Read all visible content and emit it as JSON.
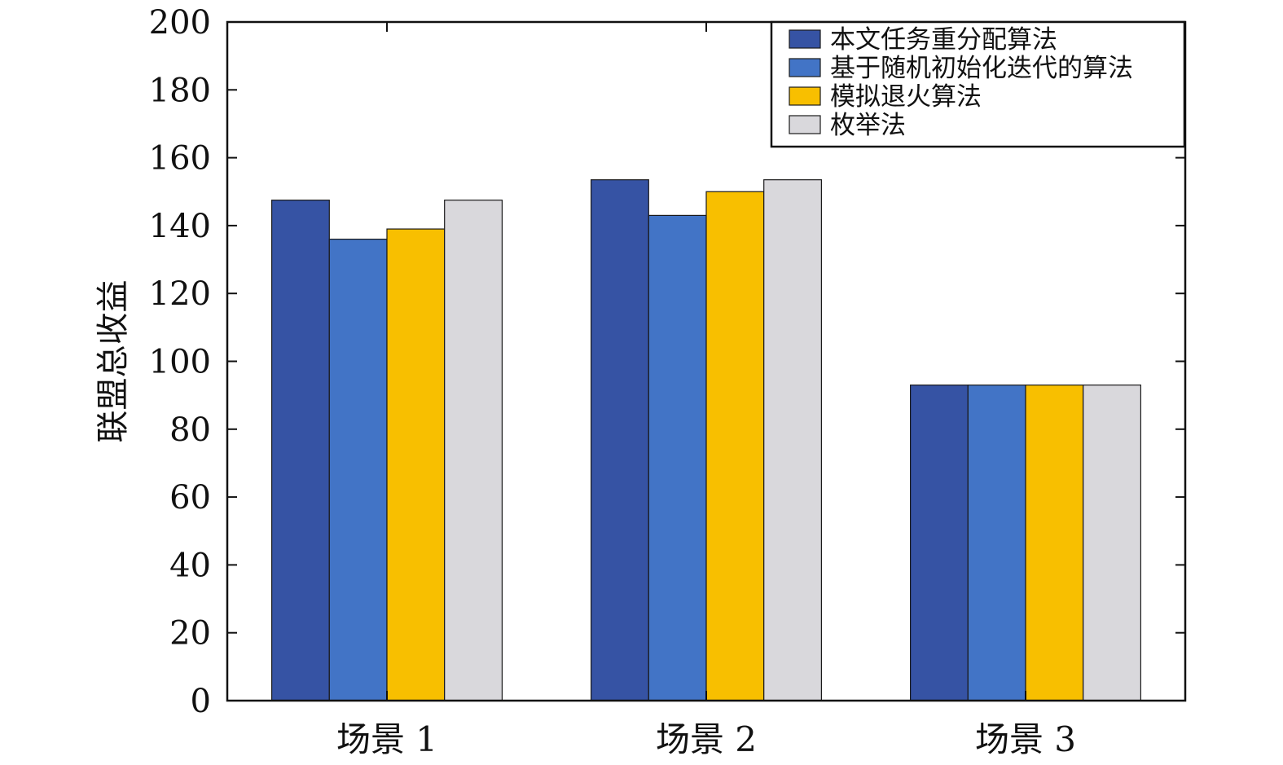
{
  "chart_data": {
    "type": "bar",
    "title": "",
    "xlabel": "",
    "ylabel": "联盟总收益",
    "ylim": [
      0,
      200
    ],
    "yticks": [
      0,
      20,
      40,
      60,
      80,
      100,
      120,
      140,
      160,
      180,
      200
    ],
    "categories": [
      "场景 1",
      "场景 2",
      "场景 3"
    ],
    "series": [
      {
        "name": "本文任务重分配算法",
        "color": "#3653a4",
        "values": [
          147.5,
          153.5,
          93
        ]
      },
      {
        "name": "基于随机初始化迭代的算法",
        "color": "#4274c6",
        "values": [
          136,
          143,
          93
        ]
      },
      {
        "name": "模拟退火算法",
        "color": "#f8bf00",
        "values": [
          139,
          150,
          93
        ]
      },
      {
        "name": "枚举法",
        "color": "#d9d8dc",
        "values": [
          147.5,
          153.5,
          93
        ]
      }
    ],
    "legend_position": "top-right",
    "grid": false
  }
}
